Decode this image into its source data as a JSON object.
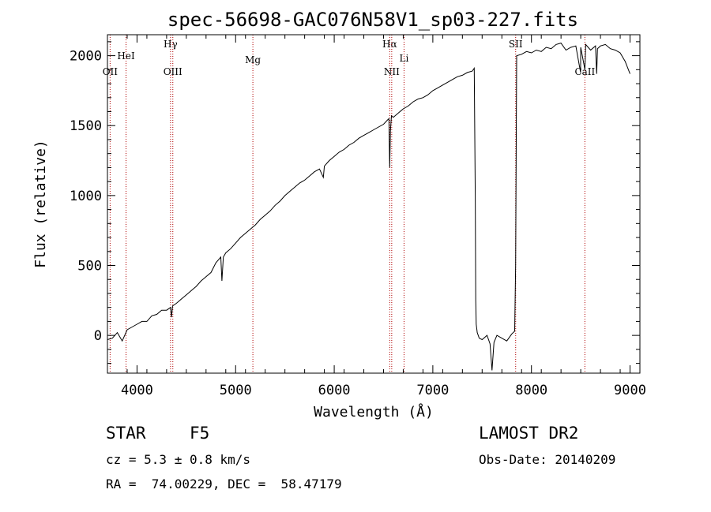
{
  "chart_data": {
    "type": "line",
    "title": "spec-56698-GAC076N58V1_sp03-227.fits",
    "xlabel": "Wavelength (Å)",
    "ylabel": "Flux (relative)",
    "xlim": [
      3700,
      9100
    ],
    "ylim": [
      -270,
      2150
    ],
    "xticks": [
      4000,
      5000,
      6000,
      7000,
      8000,
      9000
    ],
    "yticks": [
      0,
      500,
      1000,
      1500,
      2000
    ],
    "xtick_labels": [
      "4000",
      "5000",
      "6000",
      "7000",
      "8000",
      "9000"
    ],
    "ytick_labels": [
      "0",
      "500",
      "1000",
      "1500",
      "2000"
    ],
    "grid": false,
    "series": [
      {
        "color": "#000000",
        "points": [
          [
            3700,
            -30
          ],
          [
            3750,
            -20
          ],
          [
            3800,
            20
          ],
          [
            3850,
            -40
          ],
          [
            3900,
            40
          ],
          [
            3950,
            60
          ],
          [
            4000,
            80
          ],
          [
            4050,
            100
          ],
          [
            4100,
            100
          ],
          [
            4150,
            140
          ],
          [
            4200,
            150
          ],
          [
            4250,
            180
          ],
          [
            4300,
            180
          ],
          [
            4340,
            200
          ],
          [
            4350,
            130
          ],
          [
            4360,
            210
          ],
          [
            4400,
            230
          ],
          [
            4450,
            260
          ],
          [
            4500,
            290
          ],
          [
            4550,
            320
          ],
          [
            4600,
            350
          ],
          [
            4650,
            390
          ],
          [
            4700,
            420
          ],
          [
            4750,
            450
          ],
          [
            4800,
            520
          ],
          [
            4850,
            560
          ],
          [
            4861,
            390
          ],
          [
            4875,
            560
          ],
          [
            4900,
            590
          ],
          [
            4950,
            620
          ],
          [
            5000,
            660
          ],
          [
            5050,
            700
          ],
          [
            5100,
            730
          ],
          [
            5150,
            760
          ],
          [
            5200,
            790
          ],
          [
            5250,
            830
          ],
          [
            5300,
            860
          ],
          [
            5350,
            890
          ],
          [
            5400,
            930
          ],
          [
            5450,
            960
          ],
          [
            5500,
            1000
          ],
          [
            5550,
            1030
          ],
          [
            5600,
            1060
          ],
          [
            5650,
            1090
          ],
          [
            5700,
            1110
          ],
          [
            5750,
            1140
          ],
          [
            5800,
            1170
          ],
          [
            5850,
            1190
          ],
          [
            5890,
            1130
          ],
          [
            5900,
            1210
          ],
          [
            5950,
            1250
          ],
          [
            6000,
            1280
          ],
          [
            6050,
            1310
          ],
          [
            6100,
            1330
          ],
          [
            6150,
            1360
          ],
          [
            6200,
            1380
          ],
          [
            6250,
            1410
          ],
          [
            6300,
            1430
          ],
          [
            6350,
            1450
          ],
          [
            6400,
            1470
          ],
          [
            6450,
            1490
          ],
          [
            6500,
            1510
          ],
          [
            6540,
            1540
          ],
          [
            6555,
            1550
          ],
          [
            6563,
            1200
          ],
          [
            6570,
            1460
          ],
          [
            6580,
            1570
          ],
          [
            6600,
            1560
          ],
          [
            6650,
            1590
          ],
          [
            6700,
            1620
          ],
          [
            6750,
            1640
          ],
          [
            6800,
            1670
          ],
          [
            6850,
            1690
          ],
          [
            6900,
            1700
          ],
          [
            6950,
            1720
          ],
          [
            7000,
            1750
          ],
          [
            7050,
            1770
          ],
          [
            7100,
            1790
          ],
          [
            7150,
            1810
          ],
          [
            7200,
            1830
          ],
          [
            7250,
            1850
          ],
          [
            7300,
            1860
          ],
          [
            7350,
            1880
          ],
          [
            7400,
            1890
          ],
          [
            7420,
            1910
          ],
          [
            7430,
            1000
          ],
          [
            7435,
            250
          ],
          [
            7440,
            80
          ],
          [
            7450,
            20
          ],
          [
            7470,
            -20
          ],
          [
            7500,
            -30
          ],
          [
            7550,
            0
          ],
          [
            7580,
            -60
          ],
          [
            7600,
            -250
          ],
          [
            7620,
            -50
          ],
          [
            7650,
            0
          ],
          [
            7700,
            -20
          ],
          [
            7750,
            -40
          ],
          [
            7800,
            10
          ],
          [
            7830,
            30
          ],
          [
            7840,
            500
          ],
          [
            7850,
            2000
          ],
          [
            7900,
            2010
          ],
          [
            7950,
            2030
          ],
          [
            8000,
            2020
          ],
          [
            8050,
            2040
          ],
          [
            8100,
            2030
          ],
          [
            8150,
            2060
          ],
          [
            8200,
            2050
          ],
          [
            8250,
            2080
          ],
          [
            8300,
            2090
          ],
          [
            8350,
            2040
          ],
          [
            8400,
            2060
          ],
          [
            8450,
            2070
          ],
          [
            8498,
            1880
          ],
          [
            8500,
            2060
          ],
          [
            8542,
            1900
          ],
          [
            8550,
            2080
          ],
          [
            8600,
            2040
          ],
          [
            8650,
            2070
          ],
          [
            8662,
            1870
          ],
          [
            8670,
            2050
          ],
          [
            8700,
            2070
          ],
          [
            8750,
            2080
          ],
          [
            8800,
            2050
          ],
          [
            8850,
            2040
          ],
          [
            8900,
            2020
          ],
          [
            8950,
            1960
          ],
          [
            9000,
            1870
          ]
        ]
      }
    ],
    "line_markers": [
      {
        "label": "OII",
        "x": 3727
      },
      {
        "label": "HeI",
        "x": 3889
      },
      {
        "label": "Hγ",
        "x": 4340
      },
      {
        "label": "OIII",
        "x": 4363
      },
      {
        "label": "Mg",
        "x": 5175
      },
      {
        "label": "Hα",
        "x": 6563
      },
      {
        "label": "NII",
        "x": 6583
      },
      {
        "label": "Li",
        "x": 6708
      },
      {
        "label": "SII",
        "x": 7840
      },
      {
        "label": "CaII",
        "x": 8542
      }
    ]
  },
  "footer": {
    "object_class": "STAR",
    "subclass": "F5",
    "redshift_text": "cz = 5.3 ± 0.8 km/s",
    "coords_text": "RA =  74.00229, DEC =  58.47179",
    "survey": "LAMOST DR2",
    "obs_date_text": "Obs-Date: 20140209"
  }
}
